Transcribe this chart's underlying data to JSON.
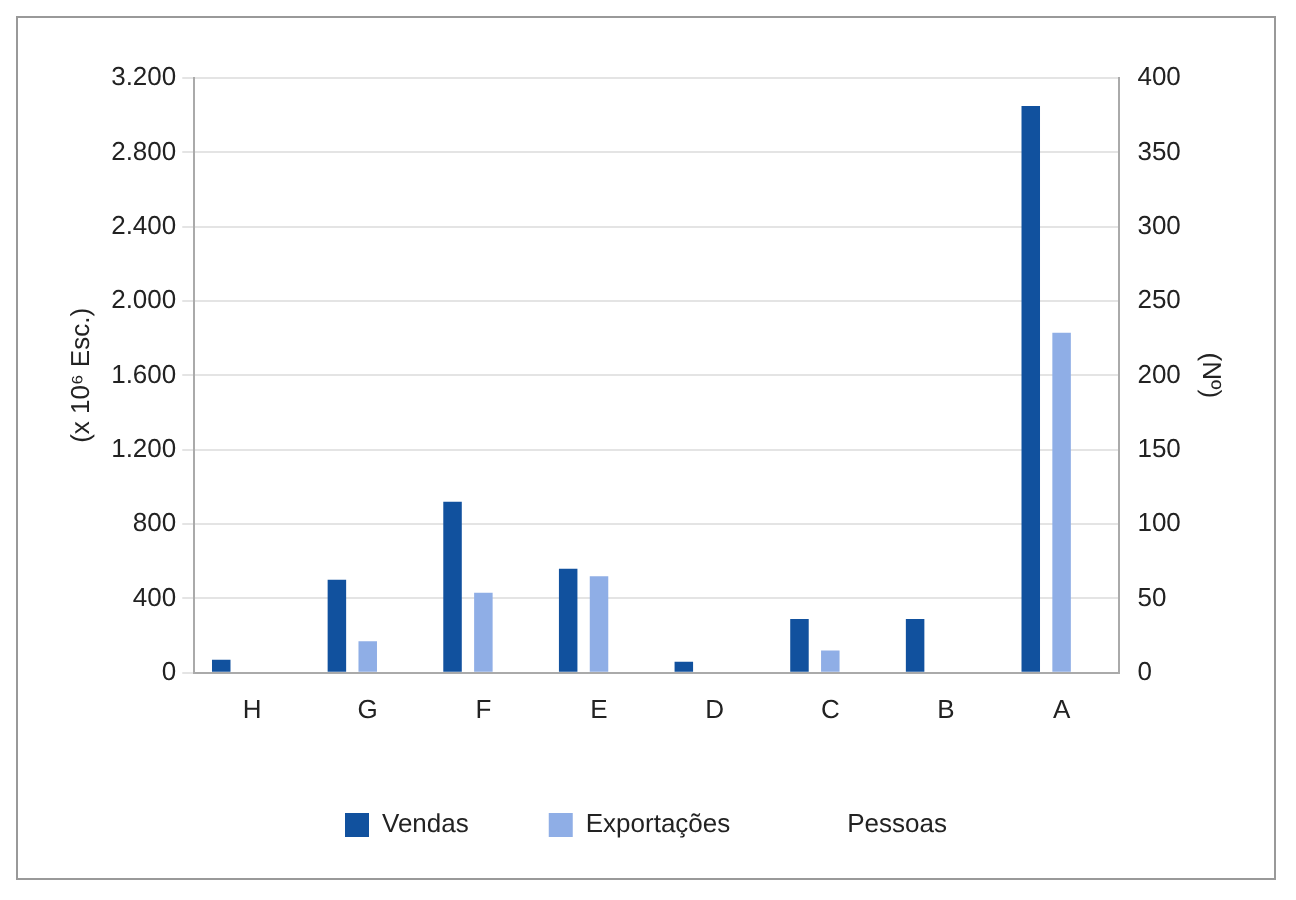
{
  "chart_data": {
    "type": "bar",
    "categories": [
      "H",
      "G",
      "F",
      "E",
      "D",
      "C",
      "B",
      "A"
    ],
    "series": [
      {
        "name": "Vendas",
        "color": "#11519e",
        "values": [
          70,
          500,
          920,
          560,
          60,
          290,
          290,
          3050
        ]
      },
      {
        "name": "Exportações",
        "color": "#8faee6",
        "values": [
          0,
          170,
          430,
          520,
          0,
          120,
          0,
          1830
        ]
      },
      {
        "name": "Pessoas",
        "axis": "y2",
        "values": [
          null,
          null,
          null,
          null,
          null,
          null,
          null,
          null
        ]
      }
    ],
    "ylabel": "(x 10⁶ Esc.)",
    "y2label": "(Nº)",
    "ylim": [
      0,
      3200
    ],
    "yticks": [
      0,
      {
        "value": 400,
        "label": "400"
      },
      {
        "value": 800,
        "label": "800"
      },
      {
        "value": 1200,
        "label": "1.200"
      },
      {
        "value": 1600,
        "label": "1.600"
      },
      {
        "value": 2000,
        "label": "2.000"
      },
      {
        "value": 2400,
        "label": "2.400"
      },
      {
        "value": 2800,
        "label": "2.800"
      },
      {
        "value": 3200,
        "label": "3.200"
      }
    ],
    "y2lim": [
      0,
      400
    ],
    "y2ticks": [
      0,
      50,
      100,
      150,
      200,
      250,
      300,
      350,
      400
    ],
    "grid": "y",
    "legend": "bottom"
  }
}
